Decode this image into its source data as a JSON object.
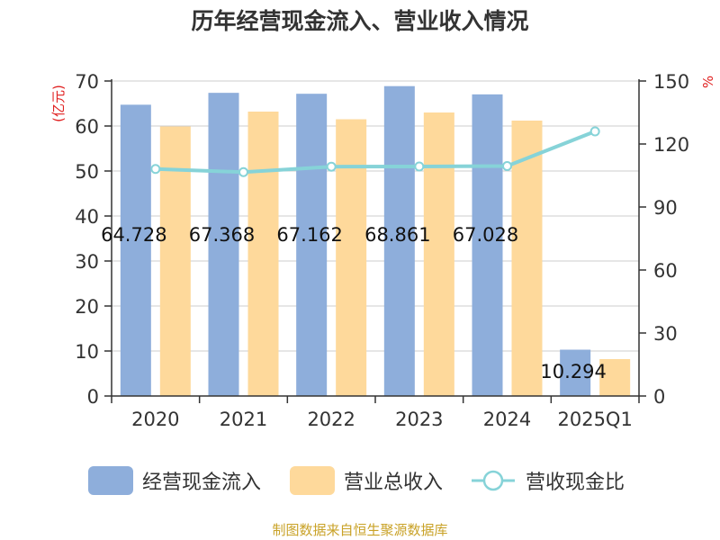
{
  "chart_data": {
    "type": "bar",
    "title": "历年经营现金流入、营业收入情况",
    "ylabel_left": "(亿元)",
    "ylabel_right": "%",
    "categories": [
      "2020",
      "2021",
      "2022",
      "2023",
      "2024",
      "2025Q1"
    ],
    "ylim_left": [
      0,
      70
    ],
    "yticks_left": [
      0,
      10,
      20,
      30,
      40,
      50,
      60,
      70
    ],
    "ylim_right": [
      0,
      150
    ],
    "yticks_right": [
      0,
      30,
      60,
      90,
      120,
      150
    ],
    "series": [
      {
        "name": "经营现金流入",
        "kind": "bar",
        "axis": "left",
        "color": "#8eaedb",
        "values": [
          64.728,
          67.368,
          67.162,
          68.861,
          67.028,
          10.294
        ],
        "labels": [
          "64.728",
          "67.368",
          "67.162",
          "68.861",
          "67.028",
          "10.294"
        ]
      },
      {
        "name": "营业总收入",
        "kind": "bar",
        "axis": "left",
        "color": "#fed99b",
        "values": [
          59.9,
          63.2,
          61.5,
          63.0,
          61.2,
          8.2
        ]
      },
      {
        "name": "营收现金比",
        "kind": "line",
        "axis": "right",
        "color": "#86d3d8",
        "values": [
          108.1,
          106.6,
          109.2,
          109.3,
          109.5,
          126.0
        ]
      }
    ],
    "grid": true,
    "legend": "bottom"
  },
  "source": "制图数据来自恒生聚源数据库"
}
